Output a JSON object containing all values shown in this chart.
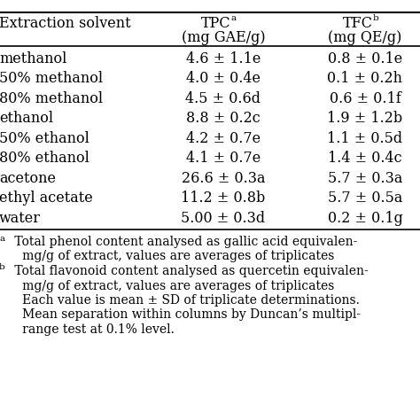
{
  "rows": [
    [
      "methanol",
      "4.6 ± 1.1e",
      "0.8 ± 0.1e"
    ],
    [
      "50% methanol",
      "4.0 ± 0.4e",
      "0.1 ± 0.2h"
    ],
    [
      "80% methanol",
      "4.5 ± 0.6d",
      "0.6 ± 0.1f"
    ],
    [
      "ethanol",
      "8.8 ± 0.2c",
      "1.9 ± 1.2b"
    ],
    [
      "50% ethanol",
      "4.2 ± 0.7e",
      "1.1 ± 0.5d"
    ],
    [
      "80% ethanol",
      "4.1 ± 0.7e",
      "1.4 ± 0.4c"
    ],
    [
      "acetone",
      "26.6 ± 0.3a",
      "5.7 ± 0.3a"
    ],
    [
      "ethyl acetate",
      "11.2 ± 0.8b",
      "5.7 ± 0.5a"
    ],
    [
      "water",
      "5.00 ± 0.3d",
      "0.2 ± 0.1g"
    ]
  ],
  "footnote_lines": [
    [
      "a",
      " Total phenol content analysed as gallic acid equivalen-"
    ],
    [
      "",
      "   mg/g of extract, values are averages of triplicates"
    ],
    [
      "b",
      " Total flavonoid content analysed as quercetin equivalen-"
    ],
    [
      "",
      "   mg/g of extract, values are averages of triplicates"
    ],
    [
      "",
      "   Each value is mean ± SD of triplicate determinations."
    ],
    [
      "",
      "   Mean separation within columns by Duncan’s multipl-"
    ],
    [
      "",
      "   range test at 0.1% level."
    ]
  ],
  "bg_color": "#ffffff",
  "text_color": "#000000",
  "line_color": "#000000",
  "font_size": 11.5,
  "header_font_size": 11.5,
  "footnote_font_size": 10.0,
  "superscript_font_size": 7.5,
  "figsize": [
    4.74,
    4.74
  ],
  "dpi": 100
}
